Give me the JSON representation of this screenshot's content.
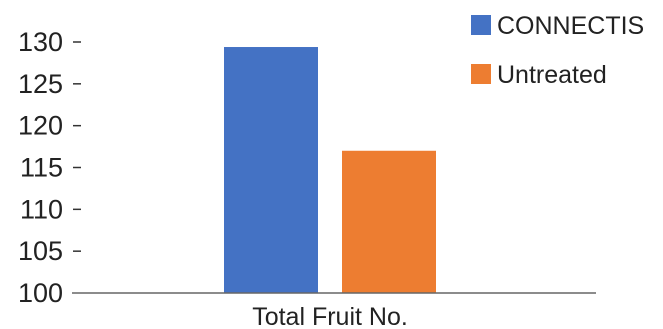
{
  "chart_data": {
    "type": "bar",
    "categories": [
      "Total Fruit No."
    ],
    "series": [
      {
        "name": "CONNECTIS",
        "values": [
          129.4
        ],
        "color": "#4472C4"
      },
      {
        "name": "Untreated",
        "values": [
          117.0
        ],
        "color": "#ED7D31"
      }
    ],
    "ylim": [
      100,
      130
    ],
    "yticks": [
      "100",
      "105",
      "110",
      "115",
      "120",
      "125",
      "130"
    ],
    "grid": false,
    "legend_position": "top-right"
  }
}
